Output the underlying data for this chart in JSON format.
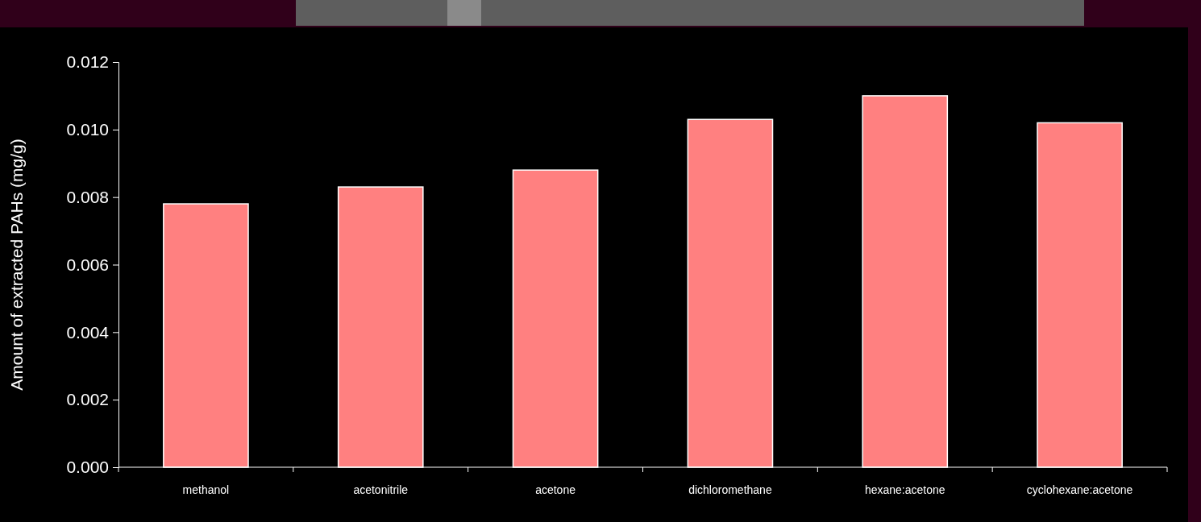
{
  "chart_data": {
    "type": "bar",
    "ylabel": "Amount of extracted PAHs (mg/g)",
    "categories": [
      "methanol",
      "acetonitrile",
      "acetone",
      "dichloromethane",
      "hexane:acetone",
      "cyclohexane:acetone"
    ],
    "values": [
      0.0078,
      0.0083,
      0.0088,
      0.0103,
      0.011,
      0.0102
    ],
    "color": "#ff8080",
    "ylim": [
      0,
      0.012
    ],
    "yticks": [
      {
        "value": 0,
        "label": "0.000"
      },
      {
        "value": 0.002,
        "label": "0.002"
      },
      {
        "value": 0.004,
        "label": "0.004"
      },
      {
        "value": 0.006,
        "label": "0.006"
      },
      {
        "value": 0.008,
        "label": "0.008"
      },
      {
        "value": 0.01,
        "label": "0.010"
      },
      {
        "value": 0.012,
        "label": "0.012"
      }
    ],
    "grid": false
  }
}
